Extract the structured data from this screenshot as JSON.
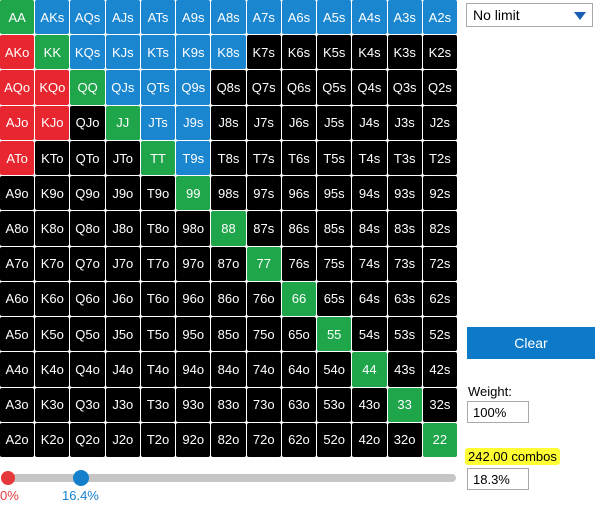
{
  "colors": {
    "pair_selected": "#1fa54a",
    "suited_selected": "#1a86d0",
    "offsuit_selected": "#e8262f",
    "unselected": "#000000",
    "slider_min": "#e63a3a",
    "slider_max": "#1480cc",
    "highlight": "#ffff33"
  },
  "grid": {
    "rows": [
      [
        [
          "AA",
          "pair"
        ],
        [
          "AKs",
          "suited"
        ],
        [
          "AQs",
          "suited"
        ],
        [
          "AJs",
          "suited"
        ],
        [
          "ATs",
          "suited"
        ],
        [
          "A9s",
          "suited"
        ],
        [
          "A8s",
          "suited"
        ],
        [
          "A7s",
          "suited"
        ],
        [
          "A6s",
          "suited"
        ],
        [
          "A5s",
          "suited"
        ],
        [
          "A4s",
          "suited"
        ],
        [
          "A3s",
          "suited"
        ],
        [
          "A2s",
          "suited"
        ]
      ],
      [
        [
          "AKo",
          "off"
        ],
        [
          "KK",
          "pair"
        ],
        [
          "KQs",
          "suited"
        ],
        [
          "KJs",
          "suited"
        ],
        [
          "KTs",
          "suited"
        ],
        [
          "K9s",
          "suited"
        ],
        [
          "K8s",
          "suited"
        ],
        [
          "K7s",
          "none"
        ],
        [
          "K6s",
          "none"
        ],
        [
          "K5s",
          "none"
        ],
        [
          "K4s",
          "none"
        ],
        [
          "K3s",
          "none"
        ],
        [
          "K2s",
          "none"
        ]
      ],
      [
        [
          "AQo",
          "off"
        ],
        [
          "KQo",
          "off"
        ],
        [
          "QQ",
          "pair"
        ],
        [
          "QJs",
          "suited"
        ],
        [
          "QTs",
          "suited"
        ],
        [
          "Q9s",
          "suited"
        ],
        [
          "Q8s",
          "none"
        ],
        [
          "Q7s",
          "none"
        ],
        [
          "Q6s",
          "none"
        ],
        [
          "Q5s",
          "none"
        ],
        [
          "Q4s",
          "none"
        ],
        [
          "Q3s",
          "none"
        ],
        [
          "Q2s",
          "none"
        ]
      ],
      [
        [
          "AJo",
          "off"
        ],
        [
          "KJo",
          "off"
        ],
        [
          "QJo",
          "none"
        ],
        [
          "JJ",
          "pair"
        ],
        [
          "JTs",
          "suited"
        ],
        [
          "J9s",
          "suited"
        ],
        [
          "J8s",
          "none"
        ],
        [
          "J7s",
          "none"
        ],
        [
          "J6s",
          "none"
        ],
        [
          "J5s",
          "none"
        ],
        [
          "J4s",
          "none"
        ],
        [
          "J3s",
          "none"
        ],
        [
          "J2s",
          "none"
        ]
      ],
      [
        [
          "ATo",
          "off"
        ],
        [
          "KTo",
          "none"
        ],
        [
          "QTo",
          "none"
        ],
        [
          "JTo",
          "none"
        ],
        [
          "TT",
          "pair"
        ],
        [
          "T9s",
          "suited"
        ],
        [
          "T8s",
          "none"
        ],
        [
          "T7s",
          "none"
        ],
        [
          "T6s",
          "none"
        ],
        [
          "T5s",
          "none"
        ],
        [
          "T4s",
          "none"
        ],
        [
          "T3s",
          "none"
        ],
        [
          "T2s",
          "none"
        ]
      ],
      [
        [
          "A9o",
          "none"
        ],
        [
          "K9o",
          "none"
        ],
        [
          "Q9o",
          "none"
        ],
        [
          "J9o",
          "none"
        ],
        [
          "T9o",
          "none"
        ],
        [
          "99",
          "pair"
        ],
        [
          "98s",
          "none"
        ],
        [
          "97s",
          "none"
        ],
        [
          "96s",
          "none"
        ],
        [
          "95s",
          "none"
        ],
        [
          "94s",
          "none"
        ],
        [
          "93s",
          "none"
        ],
        [
          "92s",
          "none"
        ]
      ],
      [
        [
          "A8o",
          "none"
        ],
        [
          "K8o",
          "none"
        ],
        [
          "Q8o",
          "none"
        ],
        [
          "J8o",
          "none"
        ],
        [
          "T8o",
          "none"
        ],
        [
          "98o",
          "none"
        ],
        [
          "88",
          "pair"
        ],
        [
          "87s",
          "none"
        ],
        [
          "86s",
          "none"
        ],
        [
          "85s",
          "none"
        ],
        [
          "84s",
          "none"
        ],
        [
          "83s",
          "none"
        ],
        [
          "82s",
          "none"
        ]
      ],
      [
        [
          "A7o",
          "none"
        ],
        [
          "K7o",
          "none"
        ],
        [
          "Q7o",
          "none"
        ],
        [
          "J7o",
          "none"
        ],
        [
          "T7o",
          "none"
        ],
        [
          "97o",
          "none"
        ],
        [
          "87o",
          "none"
        ],
        [
          "77",
          "pair"
        ],
        [
          "76s",
          "none"
        ],
        [
          "75s",
          "none"
        ],
        [
          "74s",
          "none"
        ],
        [
          "73s",
          "none"
        ],
        [
          "72s",
          "none"
        ]
      ],
      [
        [
          "A6o",
          "none"
        ],
        [
          "K6o",
          "none"
        ],
        [
          "Q6o",
          "none"
        ],
        [
          "J6o",
          "none"
        ],
        [
          "T6o",
          "none"
        ],
        [
          "96o",
          "none"
        ],
        [
          "86o",
          "none"
        ],
        [
          "76o",
          "none"
        ],
        [
          "66",
          "pair"
        ],
        [
          "65s",
          "none"
        ],
        [
          "64s",
          "none"
        ],
        [
          "63s",
          "none"
        ],
        [
          "62s",
          "none"
        ]
      ],
      [
        [
          "A5o",
          "none"
        ],
        [
          "K5o",
          "none"
        ],
        [
          "Q5o",
          "none"
        ],
        [
          "J5o",
          "none"
        ],
        [
          "T5o",
          "none"
        ],
        [
          "95o",
          "none"
        ],
        [
          "85o",
          "none"
        ],
        [
          "75o",
          "none"
        ],
        [
          "65o",
          "none"
        ],
        [
          "55",
          "pair"
        ],
        [
          "54s",
          "none"
        ],
        [
          "53s",
          "none"
        ],
        [
          "52s",
          "none"
        ]
      ],
      [
        [
          "A4o",
          "none"
        ],
        [
          "K4o",
          "none"
        ],
        [
          "Q4o",
          "none"
        ],
        [
          "J4o",
          "none"
        ],
        [
          "T4o",
          "none"
        ],
        [
          "94o",
          "none"
        ],
        [
          "84o",
          "none"
        ],
        [
          "74o",
          "none"
        ],
        [
          "64o",
          "none"
        ],
        [
          "54o",
          "none"
        ],
        [
          "44",
          "pair"
        ],
        [
          "43s",
          "none"
        ],
        [
          "42s",
          "none"
        ]
      ],
      [
        [
          "A3o",
          "none"
        ],
        [
          "K3o",
          "none"
        ],
        [
          "Q3o",
          "none"
        ],
        [
          "J3o",
          "none"
        ],
        [
          "T3o",
          "none"
        ],
        [
          "93o",
          "none"
        ],
        [
          "83o",
          "none"
        ],
        [
          "73o",
          "none"
        ],
        [
          "63o",
          "none"
        ],
        [
          "53o",
          "none"
        ],
        [
          "43o",
          "none"
        ],
        [
          "33",
          "pair"
        ],
        [
          "32s",
          "none"
        ]
      ],
      [
        [
          "A2o",
          "none"
        ],
        [
          "K2o",
          "none"
        ],
        [
          "Q2o",
          "none"
        ],
        [
          "J2o",
          "none"
        ],
        [
          "T2o",
          "none"
        ],
        [
          "92o",
          "none"
        ],
        [
          "82o",
          "none"
        ],
        [
          "72o",
          "none"
        ],
        [
          "62o",
          "none"
        ],
        [
          "52o",
          "none"
        ],
        [
          "42o",
          "none"
        ],
        [
          "32o",
          "none"
        ],
        [
          "22",
          "pair"
        ]
      ]
    ]
  },
  "slider": {
    "min_label": "0%",
    "max_label": "16.4%",
    "min_fraction": 0.0,
    "max_fraction": 0.164
  },
  "sidebar": {
    "limit_value": "No limit",
    "clear_label": "Clear",
    "weight_label": "Weight:",
    "weight_value": "100%",
    "combos_text": "242.00 combos",
    "percent_value": "18.3%"
  }
}
